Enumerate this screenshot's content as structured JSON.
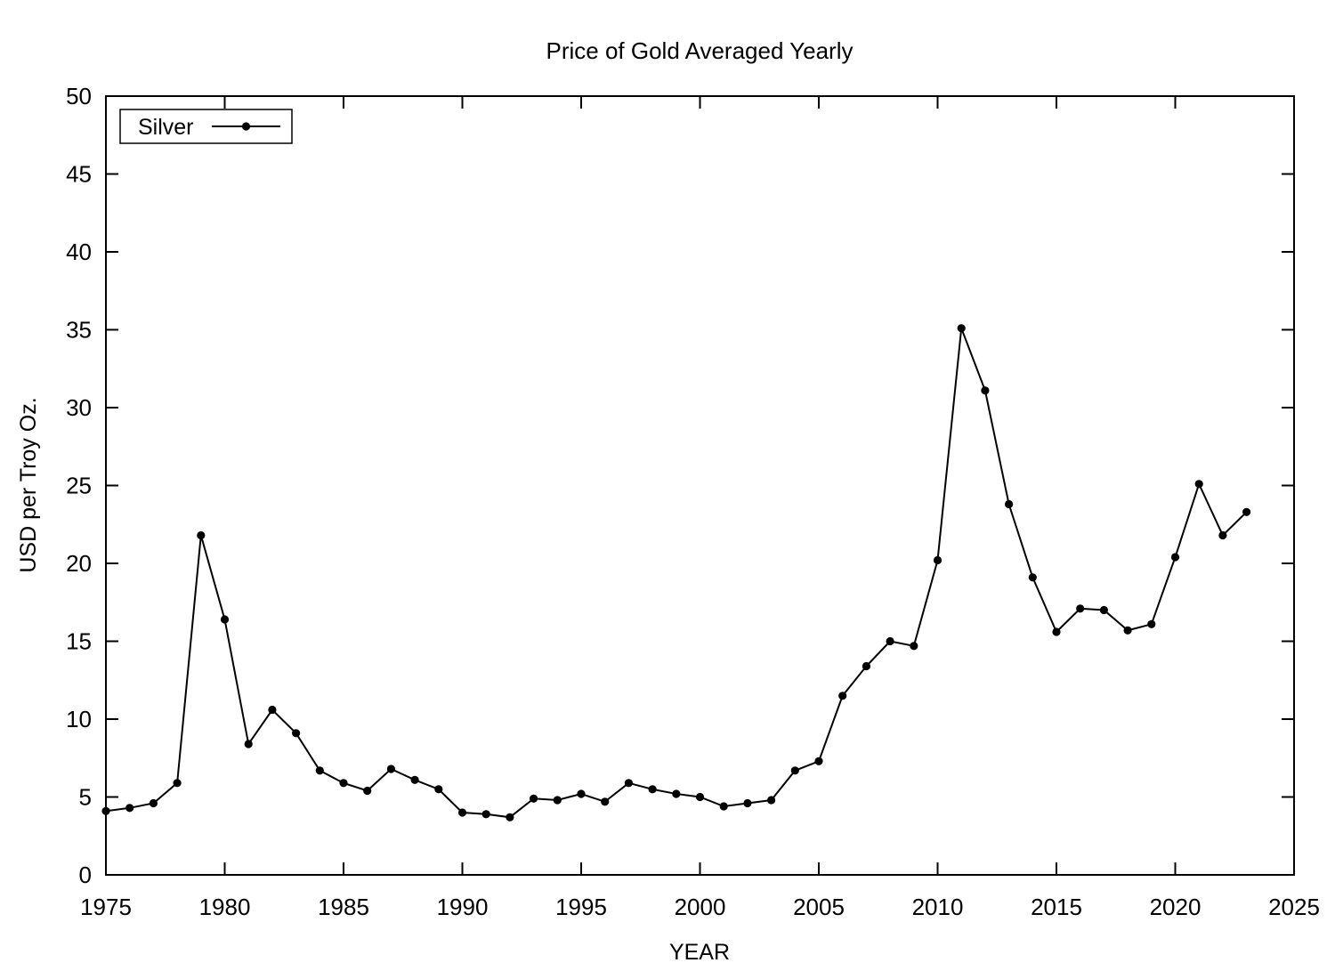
{
  "chart_data": {
    "type": "line",
    "title": "Price of Gold Averaged Yearly",
    "xlabel": "YEAR",
    "ylabel": "USD per Troy Oz.",
    "xlim": [
      1975,
      2025
    ],
    "ylim": [
      0,
      50
    ],
    "x_ticks": [
      1975,
      1980,
      1985,
      1990,
      1995,
      2000,
      2005,
      2010,
      2015,
      2020,
      2025
    ],
    "y_ticks": [
      0,
      5,
      10,
      15,
      20,
      25,
      30,
      35,
      40,
      45,
      50
    ],
    "grid": false,
    "legend_position": "top-left",
    "marker": "filled-circle",
    "line_color": "#000000",
    "background_color": "#ffffff",
    "series": [
      {
        "name": "Silver",
        "x": [
          1975,
          1976,
          1977,
          1978,
          1979,
          1980,
          1981,
          1982,
          1983,
          1984,
          1985,
          1986,
          1987,
          1988,
          1989,
          1990,
          1991,
          1992,
          1993,
          1994,
          1995,
          1996,
          1997,
          1998,
          1999,
          2000,
          2001,
          2002,
          2003,
          2004,
          2005,
          2006,
          2007,
          2008,
          2009,
          2010,
          2011,
          2012,
          2013,
          2014,
          2015,
          2016,
          2017,
          2018,
          2019,
          2020,
          2021,
          2022,
          2023
        ],
        "values": [
          4.1,
          4.3,
          4.6,
          5.9,
          21.8,
          16.4,
          8.4,
          10.6,
          9.1,
          6.7,
          5.9,
          5.4,
          6.8,
          6.1,
          5.5,
          4.0,
          3.9,
          3.7,
          4.9,
          4.8,
          5.2,
          4.7,
          5.9,
          5.5,
          5.2,
          5.0,
          4.4,
          4.6,
          4.8,
          6.7,
          7.3,
          11.5,
          13.4,
          15.0,
          14.7,
          20.2,
          35.1,
          31.1,
          23.8,
          19.1,
          15.6,
          17.1,
          17.0,
          15.7,
          16.1,
          20.4,
          25.1,
          21.8,
          23.3
        ]
      }
    ]
  }
}
